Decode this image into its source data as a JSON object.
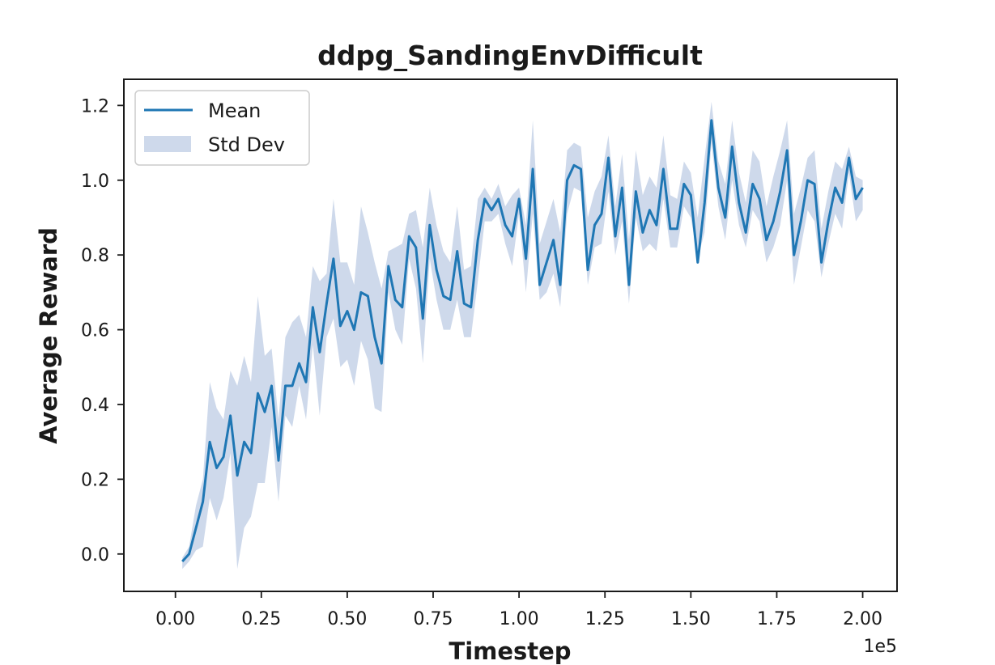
{
  "chart_data": {
    "type": "line",
    "title": "ddpg_SandingEnvDifficult",
    "xlabel": "Timestep",
    "ylabel": "Average Reward",
    "x_offset_text": "1e5",
    "xlim": [
      -0.15,
      2.1
    ],
    "ylim": [
      -0.1,
      1.27
    ],
    "x_ticks": [
      0.0,
      0.25,
      0.5,
      0.75,
      1.0,
      1.25,
      1.5,
      1.75,
      2.0
    ],
    "x_tick_labels": [
      "0.00",
      "0.25",
      "0.50",
      "0.75",
      "1.00",
      "1.25",
      "1.50",
      "1.75",
      "2.00"
    ],
    "y_ticks": [
      0.0,
      0.2,
      0.4,
      0.6,
      0.8,
      1.0,
      1.2
    ],
    "y_tick_labels": [
      "0.0",
      "0.2",
      "0.4",
      "0.6",
      "0.8",
      "1.0",
      "1.2"
    ],
    "grid": false,
    "legend": {
      "position": "top-left",
      "entries": [
        "Mean",
        "Std Dev"
      ]
    },
    "colors": {
      "mean": "#1f77b4",
      "std": "#aec0dd"
    },
    "series": [
      {
        "name": "Mean",
        "x": [
          0.02,
          0.04,
          0.06,
          0.08,
          0.1,
          0.12,
          0.14,
          0.16,
          0.18,
          0.2,
          0.22,
          0.24,
          0.26,
          0.28,
          0.3,
          0.32,
          0.34,
          0.36,
          0.38,
          0.4,
          0.42,
          0.44,
          0.46,
          0.48,
          0.5,
          0.52,
          0.54,
          0.56,
          0.58,
          0.6,
          0.62,
          0.64,
          0.66,
          0.68,
          0.7,
          0.72,
          0.74,
          0.76,
          0.78,
          0.8,
          0.82,
          0.84,
          0.86,
          0.88,
          0.9,
          0.92,
          0.94,
          0.96,
          0.98,
          1.0,
          1.02,
          1.04,
          1.06,
          1.08,
          1.1,
          1.12,
          1.14,
          1.16,
          1.18,
          1.2,
          1.22,
          1.24,
          1.26,
          1.28,
          1.3,
          1.32,
          1.34,
          1.36,
          1.38,
          1.4,
          1.42,
          1.44,
          1.46,
          1.48,
          1.5,
          1.52,
          1.54,
          1.56,
          1.58,
          1.6,
          1.62,
          1.64,
          1.66,
          1.68,
          1.7,
          1.72,
          1.74,
          1.76,
          1.78,
          1.8,
          1.82,
          1.84,
          1.86,
          1.88,
          1.9,
          1.92,
          1.94,
          1.96,
          1.98,
          2.0
        ],
        "y": [
          -0.02,
          0.0,
          0.07,
          0.14,
          0.3,
          0.23,
          0.26,
          0.37,
          0.21,
          0.3,
          0.27,
          0.43,
          0.38,
          0.45,
          0.25,
          0.45,
          0.45,
          0.51,
          0.46,
          0.66,
          0.54,
          0.67,
          0.79,
          0.61,
          0.65,
          0.6,
          0.7,
          0.69,
          0.58,
          0.51,
          0.77,
          0.68,
          0.66,
          0.85,
          0.82,
          0.63,
          0.88,
          0.76,
          0.69,
          0.68,
          0.81,
          0.67,
          0.66,
          0.84,
          0.95,
          0.92,
          0.95,
          0.88,
          0.85,
          0.95,
          0.79,
          1.03,
          0.72,
          0.78,
          0.84,
          0.72,
          1.0,
          1.04,
          1.03,
          0.76,
          0.88,
          0.91,
          1.06,
          0.85,
          0.98,
          0.72,
          0.97,
          0.86,
          0.92,
          0.88,
          1.03,
          0.87,
          0.87,
          0.99,
          0.96,
          0.78,
          0.94,
          1.16,
          0.98,
          0.9,
          1.09,
          0.94,
          0.86,
          0.99,
          0.95,
          0.84,
          0.89,
          0.97,
          1.08,
          0.8,
          0.89,
          1.0,
          0.99,
          0.78,
          0.89,
          0.98,
          0.94,
          1.06,
          0.95,
          0.98
        ]
      },
      {
        "name": "Std Dev",
        "x": [
          0.02,
          0.04,
          0.06,
          0.08,
          0.1,
          0.12,
          0.14,
          0.16,
          0.18,
          0.2,
          0.22,
          0.24,
          0.26,
          0.28,
          0.3,
          0.32,
          0.34,
          0.36,
          0.38,
          0.4,
          0.42,
          0.44,
          0.46,
          0.48,
          0.5,
          0.52,
          0.54,
          0.56,
          0.58,
          0.6,
          0.62,
          0.64,
          0.66,
          0.68,
          0.7,
          0.72,
          0.74,
          0.76,
          0.78,
          0.8,
          0.82,
          0.84,
          0.86,
          0.88,
          0.9,
          0.92,
          0.94,
          0.96,
          0.98,
          1.0,
          1.02,
          1.04,
          1.06,
          1.08,
          1.1,
          1.12,
          1.14,
          1.16,
          1.18,
          1.2,
          1.22,
          1.24,
          1.26,
          1.28,
          1.3,
          1.32,
          1.34,
          1.36,
          1.38,
          1.4,
          1.42,
          1.44,
          1.46,
          1.48,
          1.5,
          1.52,
          1.54,
          1.56,
          1.58,
          1.6,
          1.62,
          1.64,
          1.66,
          1.68,
          1.7,
          1.72,
          1.74,
          1.76,
          1.78,
          1.8,
          1.82,
          1.84,
          1.86,
          1.88,
          1.9,
          1.92,
          1.94,
          1.96,
          1.98,
          2.0
        ],
        "upper": [
          -0.01,
          0.02,
          0.13,
          0.2,
          0.46,
          0.39,
          0.36,
          0.49,
          0.45,
          0.53,
          0.46,
          0.69,
          0.53,
          0.55,
          0.36,
          0.58,
          0.62,
          0.64,
          0.58,
          0.77,
          0.73,
          0.75,
          0.95,
          0.78,
          0.78,
          0.72,
          0.93,
          0.86,
          0.78,
          0.71,
          0.81,
          0.82,
          0.83,
          0.91,
          0.92,
          0.82,
          0.98,
          0.88,
          0.81,
          0.78,
          0.93,
          0.76,
          0.77,
          0.95,
          0.98,
          0.95,
          0.99,
          0.93,
          0.96,
          0.98,
          0.88,
          1.16,
          0.83,
          0.89,
          0.95,
          0.86,
          1.08,
          1.1,
          1.09,
          0.9,
          0.97,
          1.01,
          1.12,
          0.93,
          1.07,
          0.84,
          1.08,
          0.96,
          1.01,
          0.98,
          1.12,
          0.96,
          0.95,
          1.05,
          1.02,
          0.9,
          1.06,
          1.21,
          1.05,
          0.99,
          1.16,
          1.02,
          0.94,
          1.08,
          1.05,
          0.93,
          1.01,
          1.08,
          1.16,
          0.91,
          0.98,
          1.06,
          1.08,
          0.87,
          0.97,
          1.05,
          1.03,
          1.09,
          1.01,
          1.0
        ],
        "lower": [
          -0.04,
          -0.02,
          0.01,
          0.02,
          0.15,
          0.09,
          0.15,
          0.27,
          -0.04,
          0.07,
          0.1,
          0.19,
          0.19,
          0.34,
          0.14,
          0.37,
          0.34,
          0.45,
          0.36,
          0.56,
          0.37,
          0.58,
          0.63,
          0.5,
          0.52,
          0.45,
          0.57,
          0.52,
          0.39,
          0.38,
          0.7,
          0.6,
          0.56,
          0.79,
          0.71,
          0.51,
          0.79,
          0.68,
          0.6,
          0.6,
          0.68,
          0.58,
          0.58,
          0.73,
          0.89,
          0.89,
          0.91,
          0.83,
          0.77,
          0.91,
          0.7,
          0.91,
          0.68,
          0.7,
          0.75,
          0.66,
          0.91,
          0.98,
          0.97,
          0.72,
          0.82,
          0.83,
          0.97,
          0.8,
          0.89,
          0.67,
          0.9,
          0.81,
          0.83,
          0.81,
          0.95,
          0.82,
          0.82,
          0.93,
          0.9,
          0.79,
          0.86,
          1.1,
          0.93,
          0.84,
          1.0,
          0.88,
          0.82,
          0.92,
          0.89,
          0.78,
          0.82,
          0.88,
          1.0,
          0.72,
          0.82,
          0.92,
          0.89,
          0.74,
          0.83,
          0.91,
          0.87,
          1.02,
          0.89,
          0.92
        ]
      }
    ]
  }
}
